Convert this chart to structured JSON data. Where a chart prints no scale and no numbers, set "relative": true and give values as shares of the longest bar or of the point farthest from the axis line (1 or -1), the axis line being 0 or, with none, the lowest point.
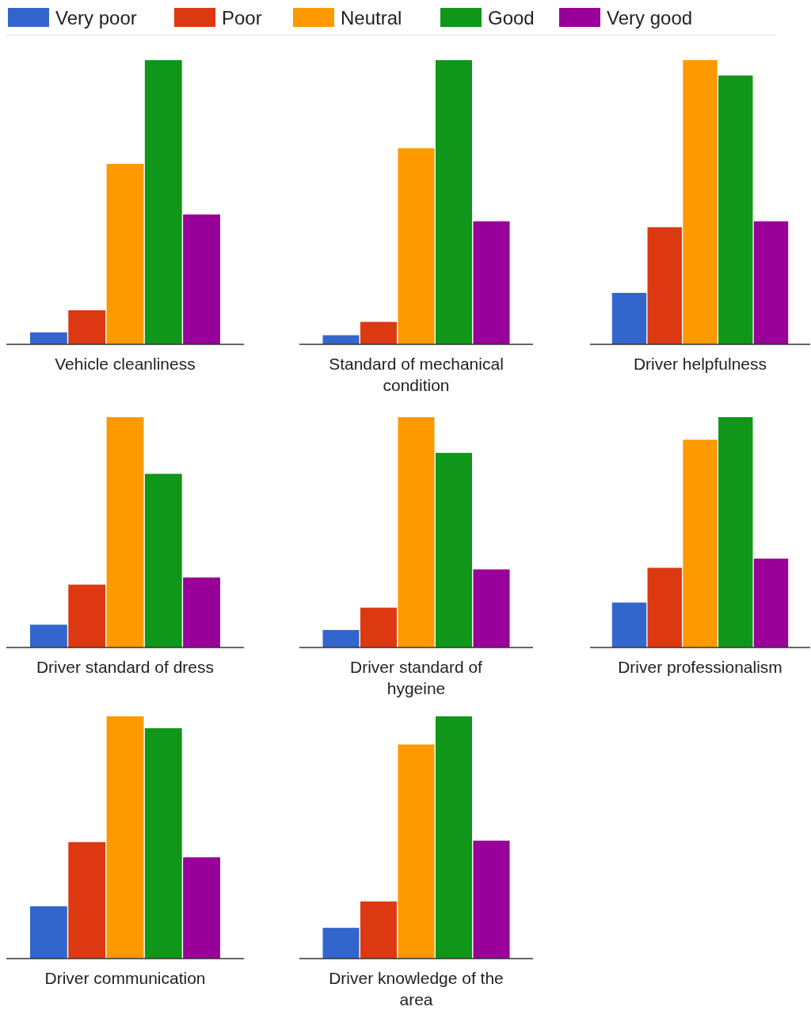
{
  "chart_data": [
    {
      "type": "bar",
      "title": "Vehicle cleanliness",
      "relative": true,
      "categories": [
        null
      ],
      "legend": "top",
      "series": [
        {
          "name": "Very poor",
          "color": "#3366cc",
          "values": [
            0.042
          ]
        },
        {
          "name": "Poor",
          "color": "#dc3912",
          "values": [
            0.12
          ]
        },
        {
          "name": "Neutral",
          "color": "#ff9900",
          "values": [
            0.635
          ]
        },
        {
          "name": "Good",
          "color": "#109618",
          "values": [
            1
          ]
        },
        {
          "name": "Very good",
          "color": "#990099",
          "values": [
            0.457
          ]
        }
      ]
    },
    {
      "type": "bar",
      "title": "Standard of mechanical condition",
      "relative": true,
      "categories": [
        null
      ],
      "series": [
        {
          "color": "#3366cc",
          "values": [
            0.032
          ]
        },
        {
          "color": "#dc3912",
          "values": [
            0.079
          ]
        },
        {
          "color": "#ff9900",
          "values": [
            0.69
          ]
        },
        {
          "color": "#109618",
          "values": [
            1
          ]
        },
        {
          "color": "#990099",
          "values": [
            0.433
          ]
        }
      ]
    },
    {
      "type": "bar",
      "title": "Driver helpfulness",
      "relative": true,
      "categories": [
        null
      ],
      "series": [
        {
          "color": "#3366cc",
          "values": [
            0.181
          ]
        },
        {
          "color": "#dc3912",
          "values": [
            0.412
          ]
        },
        {
          "color": "#ff9900",
          "values": [
            1
          ]
        },
        {
          "color": "#109618",
          "values": [
            0.946
          ]
        },
        {
          "color": "#990099",
          "values": [
            0.433
          ]
        }
      ]
    },
    {
      "type": "bar",
      "title": "Driver standard of dress",
      "relative": true,
      "categories": [
        null
      ],
      "series": [
        {
          "color": "#3366cc",
          "values": [
            0.099
          ]
        },
        {
          "color": "#dc3912",
          "values": [
            0.273
          ]
        },
        {
          "color": "#ff9900",
          "values": [
            1
          ]
        },
        {
          "color": "#109618",
          "values": [
            0.754
          ]
        },
        {
          "color": "#990099",
          "values": [
            0.304
          ]
        }
      ]
    },
    {
      "type": "bar",
      "title": "Driver standard of hygeine",
      "relative": true,
      "categories": [
        null
      ],
      "series": [
        {
          "color": "#3366cc",
          "values": [
            0.076
          ]
        },
        {
          "color": "#dc3912",
          "values": [
            0.173
          ]
        },
        {
          "color": "#ff9900",
          "values": [
            1
          ]
        },
        {
          "color": "#109618",
          "values": [
            0.845
          ]
        },
        {
          "color": "#990099",
          "values": [
            0.339
          ]
        }
      ]
    },
    {
      "type": "bar",
      "title": "Driver professionalism",
      "relative": true,
      "categories": [
        null
      ],
      "series": [
        {
          "color": "#3366cc",
          "values": [
            0.195
          ]
        },
        {
          "color": "#dc3912",
          "values": [
            0.346
          ]
        },
        {
          "color": "#ff9900",
          "values": [
            0.902
          ]
        },
        {
          "color": "#109618",
          "values": [
            1
          ]
        },
        {
          "color": "#990099",
          "values": [
            0.386
          ]
        }
      ]
    },
    {
      "type": "bar",
      "title": "Driver communication",
      "relative": true,
      "categories": [
        null
      ],
      "series": [
        {
          "color": "#3366cc",
          "values": [
            0.216
          ]
        },
        {
          "color": "#dc3912",
          "values": [
            0.481
          ]
        },
        {
          "color": "#ff9900",
          "values": [
            1
          ]
        },
        {
          "color": "#109618",
          "values": [
            0.951
          ]
        },
        {
          "color": "#990099",
          "values": [
            0.418
          ]
        }
      ]
    },
    {
      "type": "bar",
      "title": "Driver knowledge of the area",
      "relative": true,
      "categories": [
        null
      ],
      "series": [
        {
          "color": "#3366cc",
          "values": [
            0.127
          ]
        },
        {
          "color": "#dc3912",
          "values": [
            0.236
          ]
        },
        {
          "color": "#ff9900",
          "values": [
            0.884
          ]
        },
        {
          "color": "#109618",
          "values": [
            1
          ]
        },
        {
          "color": "#990099",
          "values": [
            0.487
          ]
        }
      ]
    }
  ]
}
